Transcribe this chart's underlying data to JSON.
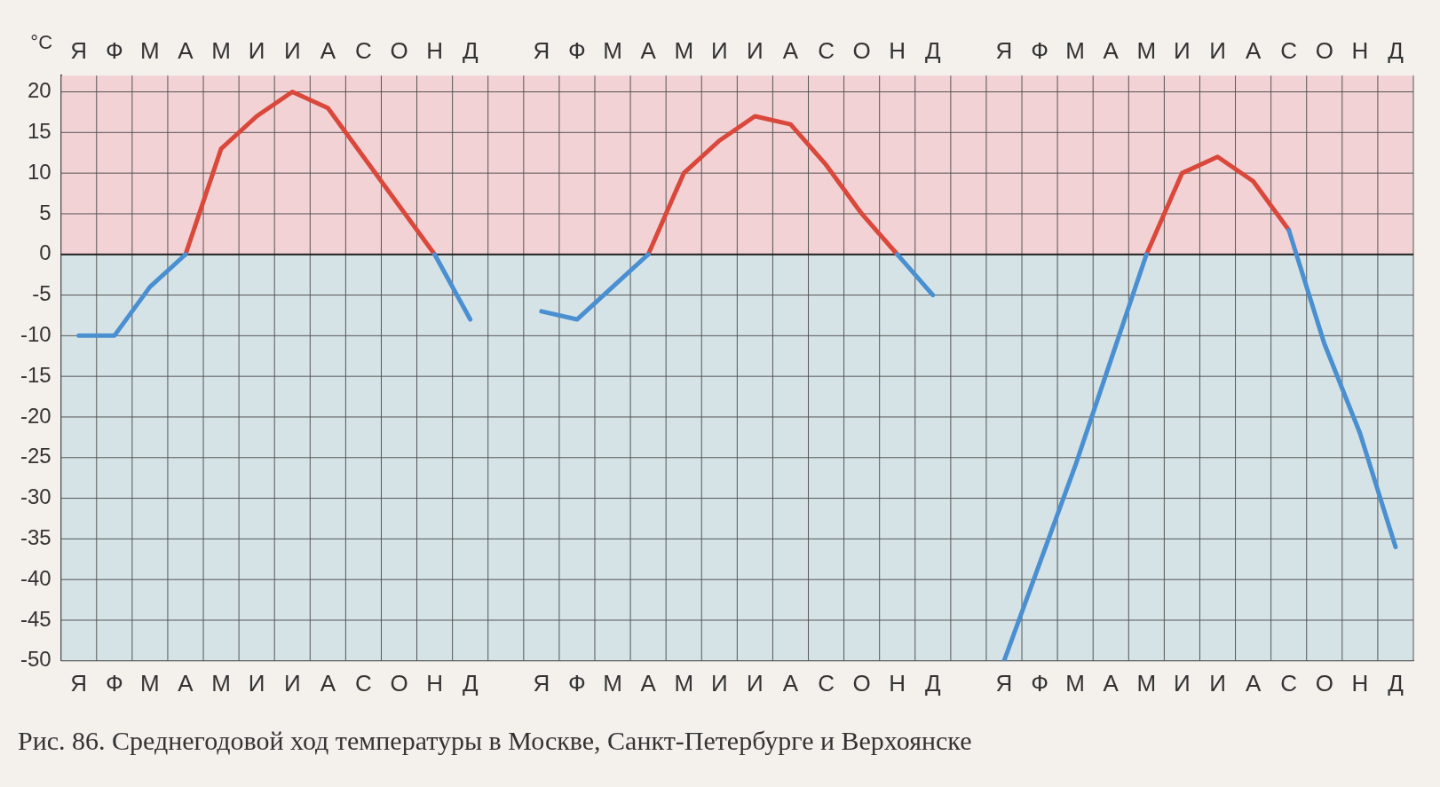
{
  "chart_data": {
    "type": "line",
    "categories": [
      "Я",
      "Ф",
      "М",
      "А",
      "М",
      "И",
      "И",
      "А",
      "С",
      "О",
      "Н",
      "Д",
      null,
      "Я",
      "Ф",
      "М",
      "А",
      "М",
      "И",
      "И",
      "А",
      "С",
      "О",
      "Н",
      "Д",
      null,
      "Я",
      "Ф",
      "М",
      "А",
      "М",
      "И",
      "И",
      "А",
      "С",
      "О",
      "Н",
      "Д"
    ],
    "series": [
      {
        "color": "#4a8fd0",
        "values": [
          -10,
          -10,
          -4,
          0,
          null,
          null,
          null,
          null,
          null,
          null,
          0,
          -8,
          null,
          null,
          null,
          null,
          null,
          null,
          null,
          null,
          null,
          null,
          null,
          null,
          null,
          null,
          null,
          null,
          null,
          null,
          null,
          null,
          null,
          null,
          null,
          null,
          null,
          null
        ]
      },
      {
        "color": "#d9483b",
        "values": [
          null,
          null,
          null,
          0,
          13,
          17,
          20,
          18,
          12,
          6,
          0,
          null,
          null,
          null,
          null,
          null,
          null,
          null,
          null,
          null,
          null,
          null,
          null,
          null,
          null,
          null,
          null,
          null,
          null,
          null,
          null,
          null,
          null,
          null,
          null,
          null,
          null,
          null
        ]
      },
      {
        "color": "#4a8fd0",
        "values": [
          null,
          null,
          null,
          null,
          null,
          null,
          null,
          null,
          null,
          null,
          null,
          null,
          null,
          -7,
          -8,
          -4,
          0,
          null,
          null,
          null,
          null,
          null,
          null,
          0,
          -5,
          null,
          null,
          null,
          null,
          null,
          null,
          null,
          null,
          null,
          null,
          null,
          null,
          null
        ]
      },
      {
        "color": "#d9483b",
        "values": [
          null,
          null,
          null,
          null,
          null,
          null,
          null,
          null,
          null,
          null,
          null,
          null,
          null,
          null,
          null,
          null,
          0,
          10,
          14,
          17,
          16,
          11,
          5,
          0,
          null,
          null,
          null,
          null,
          null,
          null,
          null,
          null,
          null,
          null,
          null,
          null,
          null,
          null
        ]
      },
      {
        "color": "#4a8fd0",
        "values": [
          null,
          null,
          null,
          null,
          null,
          null,
          null,
          null,
          null,
          null,
          null,
          null,
          null,
          null,
          null,
          null,
          null,
          null,
          null,
          null,
          null,
          null,
          null,
          null,
          null,
          null,
          -50,
          -38,
          -26,
          -13,
          0,
          null,
          null,
          null,
          3,
          -11,
          -22,
          -36
        ]
      },
      {
        "color": "#d9483b",
        "values": [
          null,
          null,
          null,
          null,
          null,
          null,
          null,
          null,
          null,
          null,
          null,
          null,
          null,
          null,
          null,
          null,
          null,
          null,
          null,
          null,
          null,
          null,
          null,
          null,
          null,
          null,
          null,
          null,
          null,
          null,
          0,
          10,
          12,
          9,
          3,
          null,
          null,
          null
        ]
      }
    ],
    "ylabel": "°C",
    "ylim": [
      -50,
      22
    ],
    "yticks": [
      -50,
      -45,
      -40,
      -35,
      -30,
      -25,
      -20,
      -15,
      -10,
      -5,
      0,
      5,
      10,
      15,
      20
    ],
    "bands": [
      {
        "axis": "y",
        "from": 0,
        "to": 22,
        "color": "#f2cdd2"
      },
      {
        "axis": "y",
        "from": -50,
        "to": 0,
        "color": "#cfe0e6"
      }
    ],
    "ref_lines": [
      {
        "axis": "y",
        "value": 0,
        "color": "#222222"
      }
    ],
    "grid": true,
    "legend": false,
    "marker": "none",
    "line_style": "solid",
    "annotations": [
      "Рис. 86. Среднегодовой ход температуры в Москве, Санкт-Петербурге и Верхоянске"
    ]
  }
}
